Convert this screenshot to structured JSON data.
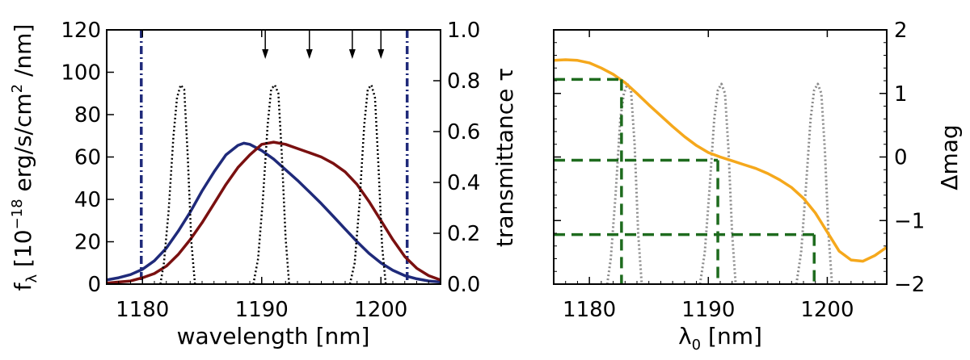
{
  "chart_data": [
    {
      "type": "line",
      "panel": "left",
      "xlabel": "wavelength [nm]",
      "ylabel_parts": [
        "f",
        "λ",
        " [10",
        "−18",
        " erg/s/cm",
        "2",
        " /nm]"
      ],
      "ylabel2_parts": [
        "transmittance ",
        "τ"
      ],
      "xlim": [
        1177,
        1205
      ],
      "ylim": [
        0,
        120
      ],
      "ylim2": [
        0,
        1.0
      ],
      "xticks": [
        1180,
        1190,
        1200
      ],
      "xtick_labels": [
        "1180",
        "1190",
        "1200"
      ],
      "yticks": [
        0,
        20,
        40,
        60,
        80,
        100,
        120
      ],
      "ytick_labels": [
        "0",
        "20",
        "40",
        "60",
        "80",
        "100",
        "120"
      ],
      "yticks2": [
        0.0,
        0.2,
        0.4,
        0.6,
        0.8,
        1.0
      ],
      "ytick2_labels": [
        "0.0",
        "0.2",
        "0.4",
        "0.6",
        "0.8",
        "1.0"
      ],
      "series": [
        {
          "name": "spectrum-blue",
          "color": "#1f2a7a",
          "style": "solid",
          "x": [
            1177,
            1178,
            1179,
            1180,
            1181,
            1182,
            1183,
            1184,
            1185,
            1186,
            1187,
            1188,
            1188.5,
            1189,
            1190,
            1191,
            1192,
            1193,
            1194,
            1195,
            1196,
            1197,
            1198,
            1199,
            1200,
            1201,
            1202,
            1203,
            1204,
            1205
          ],
          "y": [
            2,
            3,
            4.5,
            7,
            11,
            17,
            25,
            34,
            44,
            53,
            61,
            65.5,
            66.5,
            66,
            63,
            59,
            54,
            49,
            43.5,
            38,
            32,
            26,
            20,
            14.5,
            10,
            6.5,
            4,
            2.5,
            1.5,
            1
          ]
        },
        {
          "name": "spectrum-red",
          "color": "#7a1010",
          "style": "solid",
          "x": [
            1177,
            1178,
            1179,
            1180,
            1181,
            1182,
            1183,
            1184,
            1185,
            1186,
            1187,
            1188,
            1189,
            1190,
            1191,
            1192,
            1193,
            1194,
            1195,
            1196,
            1197,
            1198,
            1199,
            1200,
            1201,
            1202,
            1203,
            1204,
            1205
          ],
          "y": [
            0.5,
            1,
            1.5,
            3,
            5,
            8.5,
            14,
            21,
            29,
            38,
            47,
            55,
            61,
            66,
            67,
            66,
            64,
            62,
            60,
            57,
            53,
            47,
            39,
            30,
            21,
            13,
            7.5,
            4,
            2
          ]
        },
        {
          "name": "filter-1",
          "color": "#000000",
          "style": "dotted",
          "x": [
            1181.5,
            1181.8,
            1182.2,
            1182.6,
            1182.9,
            1183.2,
            1183.5,
            1183.8,
            1184.1,
            1184.4
          ],
          "y": [
            0,
            10,
            35,
            70,
            88,
            94,
            92,
            60,
            20,
            0
          ]
        },
        {
          "name": "filter-2",
          "color": "#000000",
          "style": "dotted",
          "x": [
            1189.3,
            1189.7,
            1190.1,
            1190.5,
            1190.8,
            1191.1,
            1191.4,
            1191.7,
            1192.0,
            1192.3
          ],
          "y": [
            0,
            12,
            40,
            75,
            92,
            94,
            90,
            60,
            22,
            0
          ]
        },
        {
          "name": "filter-3",
          "color": "#000000",
          "style": "dotted",
          "x": [
            1197.4,
            1197.8,
            1198.2,
            1198.6,
            1198.9,
            1199.2,
            1199.5,
            1199.8,
            1200.1,
            1200.4
          ],
          "y": [
            0,
            10,
            38,
            75,
            92,
            94,
            88,
            55,
            18,
            0
          ]
        }
      ],
      "vlines": [
        {
          "x": 1179.9,
          "color": "#1f2a7a",
          "style": "dashdot"
        },
        {
          "x": 1202.2,
          "color": "#1f2a7a",
          "style": "dashdot"
        }
      ],
      "arrows_x": [
        1190.3,
        1194.0,
        1197.6,
        1200.0
      ]
    },
    {
      "type": "line",
      "panel": "right",
      "xlabel_parts": [
        "λ",
        "0",
        " [nm]"
      ],
      "ylabel": "Δmag",
      "xlim": [
        1177,
        1205
      ],
      "ylim": [
        -2,
        2
      ],
      "xticks": [
        1180,
        1190,
        1200
      ],
      "xtick_labels": [
        "1180",
        "1190",
        "1200"
      ],
      "yticks": [
        -2,
        -1,
        0,
        1,
        2
      ],
      "ytick_labels": [
        "−2",
        "−1",
        "0",
        "1",
        "2"
      ],
      "series": [
        {
          "name": "delta-mag-curve",
          "color": "#f5a81c",
          "style": "solid",
          "x": [
            1177,
            1178,
            1179,
            1180,
            1181,
            1182,
            1183,
            1184,
            1185,
            1186,
            1187,
            1188,
            1189,
            1190,
            1191,
            1192,
            1193,
            1194,
            1195,
            1196,
            1197,
            1198,
            1199,
            1200,
            1201,
            1202,
            1203,
            1204,
            1205
          ],
          "y": [
            1.52,
            1.53,
            1.52,
            1.48,
            1.4,
            1.3,
            1.17,
            1.0,
            0.82,
            0.65,
            0.48,
            0.32,
            0.18,
            0.07,
            0.0,
            -0.06,
            -0.12,
            -0.18,
            -0.26,
            -0.36,
            -0.48,
            -0.65,
            -0.88,
            -1.18,
            -1.48,
            -1.62,
            -1.64,
            -1.55,
            -1.42
          ]
        },
        {
          "name": "filter-1-gray",
          "color": "#8a8a8a",
          "style": "dotted",
          "x": [
            1181.5,
            1181.8,
            1182.2,
            1182.6,
            1182.9,
            1183.2,
            1183.5,
            1183.8,
            1184.1,
            1184.4
          ],
          "y": [
            -2,
            -1.6,
            -0.6,
            0.6,
            1.0,
            1.15,
            1.05,
            0.2,
            -1.2,
            -2
          ]
        },
        {
          "name": "filter-2-gray",
          "color": "#8a8a8a",
          "style": "dotted",
          "x": [
            1189.3,
            1189.7,
            1190.1,
            1190.5,
            1190.8,
            1191.1,
            1191.4,
            1191.7,
            1192.0,
            1192.3
          ],
          "y": [
            -2,
            -1.5,
            -0.5,
            0.6,
            1.05,
            1.15,
            1.0,
            0.1,
            -1.2,
            -2
          ]
        },
        {
          "name": "filter-3-gray",
          "color": "#8a8a8a",
          "style": "dotted",
          "x": [
            1197.4,
            1197.8,
            1198.2,
            1198.6,
            1198.9,
            1199.2,
            1199.5,
            1199.8,
            1200.1,
            1200.4
          ],
          "y": [
            -2,
            -1.5,
            -0.5,
            0.6,
            1.05,
            1.15,
            1.0,
            0.1,
            -1.2,
            -2
          ]
        }
      ],
      "guides": [
        {
          "x": 1182.7,
          "y": 1.22,
          "color": "#1e6b1e"
        },
        {
          "x": 1190.8,
          "y": -0.05,
          "color": "#1e6b1e"
        },
        {
          "x": 1198.9,
          "y": -1.22,
          "color": "#1e6b1e"
        }
      ]
    }
  ]
}
